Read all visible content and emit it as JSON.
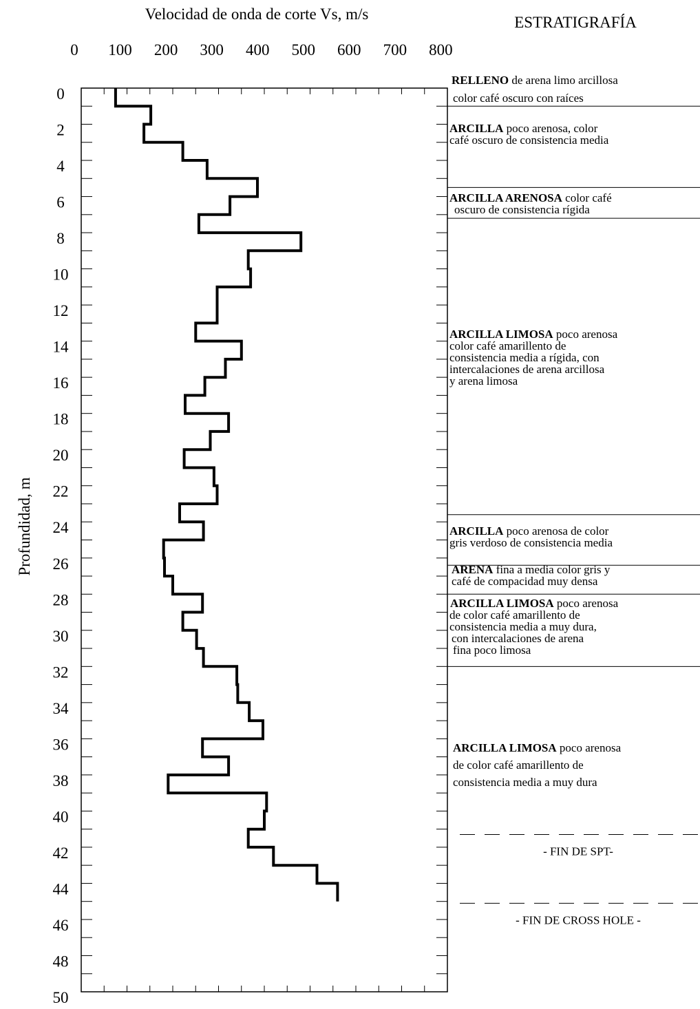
{
  "chart_data": {
    "type": "line",
    "xlabel": "Velocidad de onda de corte Vs, m/s",
    "ylabel": "Profundidad, m",
    "xlim": [
      0,
      800
    ],
    "ylim": [
      0,
      50
    ],
    "x_ticks": [
      "0",
      "100",
      "200",
      "300",
      "400",
      "500",
      "600",
      "700",
      "800"
    ],
    "y_ticks": [
      "0",
      "2",
      "4",
      "6",
      "8",
      "10",
      "12",
      "14",
      "16",
      "18",
      "20",
      "22",
      "24",
      "26",
      "28",
      "30",
      "32",
      "34",
      "36",
      "38",
      "40",
      "42",
      "44",
      "46",
      "48",
      "50"
    ],
    "y_inverted": true,
    "step_profile": [
      {
        "depth_top": 0,
        "depth_bottom": 1,
        "vs": 75
      },
      {
        "depth_top": 1,
        "depth_bottom": 2,
        "vs": 152
      },
      {
        "depth_top": 2,
        "depth_bottom": 3,
        "vs": 137
      },
      {
        "depth_top": 3,
        "depth_bottom": 4,
        "vs": 222
      },
      {
        "depth_top": 4,
        "depth_bottom": 5,
        "vs": 275
      },
      {
        "depth_top": 5,
        "depth_bottom": 6,
        "vs": 385
      },
      {
        "depth_top": 6,
        "depth_bottom": 7,
        "vs": 325
      },
      {
        "depth_top": 7,
        "depth_bottom": 8,
        "vs": 257
      },
      {
        "depth_top": 8,
        "depth_bottom": 9,
        "vs": 480
      },
      {
        "depth_top": 9,
        "depth_bottom": 10,
        "vs": 365
      },
      {
        "depth_top": 10,
        "depth_bottom": 11,
        "vs": 370
      },
      {
        "depth_top": 11,
        "depth_bottom": 13,
        "vs": 297
      },
      {
        "depth_top": 13,
        "depth_bottom": 14,
        "vs": 250
      },
      {
        "depth_top": 14,
        "depth_bottom": 15,
        "vs": 350
      },
      {
        "depth_top": 15,
        "depth_bottom": 16,
        "vs": 315
      },
      {
        "depth_top": 16,
        "depth_bottom": 17,
        "vs": 270
      },
      {
        "depth_top": 17,
        "depth_bottom": 18,
        "vs": 227
      },
      {
        "depth_top": 18,
        "depth_bottom": 19,
        "vs": 322
      },
      {
        "depth_top": 19,
        "depth_bottom": 20,
        "vs": 282
      },
      {
        "depth_top": 20,
        "depth_bottom": 21,
        "vs": 225
      },
      {
        "depth_top": 21,
        "depth_bottom": 22,
        "vs": 290
      },
      {
        "depth_top": 22,
        "depth_bottom": 23,
        "vs": 297
      },
      {
        "depth_top": 23,
        "depth_bottom": 24,
        "vs": 215
      },
      {
        "depth_top": 24,
        "depth_bottom": 25,
        "vs": 267
      },
      {
        "depth_top": 25,
        "depth_bottom": 26,
        "vs": 180
      },
      {
        "depth_top": 26,
        "depth_bottom": 27,
        "vs": 182
      },
      {
        "depth_top": 27,
        "depth_bottom": 28,
        "vs": 200
      },
      {
        "depth_top": 28,
        "depth_bottom": 29,
        "vs": 265
      },
      {
        "depth_top": 29,
        "depth_bottom": 30,
        "vs": 222
      },
      {
        "depth_top": 30,
        "depth_bottom": 31,
        "vs": 252
      },
      {
        "depth_top": 31,
        "depth_bottom": 32,
        "vs": 267
      },
      {
        "depth_top": 32,
        "depth_bottom": 33,
        "vs": 340
      },
      {
        "depth_top": 33,
        "depth_bottom": 34,
        "vs": 342
      },
      {
        "depth_top": 34,
        "depth_bottom": 35,
        "vs": 367
      },
      {
        "depth_top": 35,
        "depth_bottom": 36,
        "vs": 397
      },
      {
        "depth_top": 36,
        "depth_bottom": 37,
        "vs": 265
      },
      {
        "depth_top": 37,
        "depth_bottom": 38,
        "vs": 322
      },
      {
        "depth_top": 38,
        "depth_bottom": 39,
        "vs": 190
      },
      {
        "depth_top": 39,
        "depth_bottom": 40,
        "vs": 405
      },
      {
        "depth_top": 40,
        "depth_bottom": 41,
        "vs": 400
      },
      {
        "depth_top": 41,
        "depth_bottom": 42,
        "vs": 365
      },
      {
        "depth_top": 42,
        "depth_bottom": 43,
        "vs": 420
      },
      {
        "depth_top": 43,
        "depth_bottom": 44,
        "vs": 515
      },
      {
        "depth_top": 44,
        "depth_bottom": 45,
        "vs": 560
      }
    ],
    "grid": false,
    "legend": "none"
  },
  "stratigraphy": {
    "title": "ESTRATIGRAFÍA",
    "boundaries": [
      1,
      5.5,
      7.2,
      23.6,
      26.4,
      28,
      32
    ],
    "markers": [
      {
        "depth": 41.3,
        "label": "- FIN DE SPT-"
      },
      {
        "depth": 45.1,
        "label": "- FIN DE CROSS HOLE -"
      }
    ],
    "layers": [
      {
        "bold": "RELLENO",
        "text": " de arena limo arcillosa",
        "lines": [
          "color café oscuro con raíces"
        ]
      },
      {
        "bold": "ARCILLA",
        "text": " poco arenosa, color",
        "lines": [
          "café oscuro de consistencia media"
        ]
      },
      {
        "bold": "ARCILLA ARENOSA",
        "text": " color café",
        "lines": [
          "oscuro de consistencia rígida"
        ]
      },
      {
        "bold": "ARCILLA LIMOSA",
        "text": " poco arenosa",
        "lines": [
          "color café  amarillento de",
          "consistencia media a rígida, con",
          "intercalaciones de arena arcillosa",
          "y arena limosa"
        ]
      },
      {
        "bold": "ARCILLA",
        "text": " poco arenosa de color",
        "lines": [
          "gris verdoso de consistencia media"
        ]
      },
      {
        "bold": "ARENA",
        "text": " fina a media color gris y",
        "lines": [
          "café de compacidad muy densa"
        ]
      },
      {
        "bold": "ARCILLA LIMOSA",
        "text": " poco arenosa",
        "lines": [
          "de color café  amarillento de",
          "consistencia  media a muy dura,",
          " con intercalaciones de arena",
          " fina poco limosa"
        ]
      },
      {
        "bold": "ARCILLA LIMOSA",
        "text": " poco arenosa",
        "lines": [
          "de color café  amarillento de",
          "consistencia  media a muy dura"
        ]
      }
    ]
  }
}
